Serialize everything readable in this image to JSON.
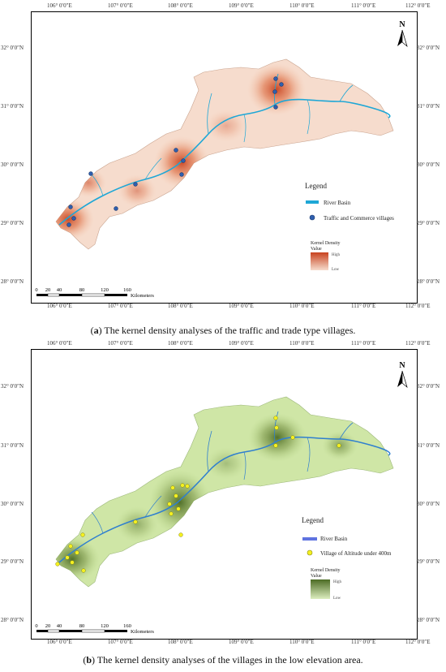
{
  "panel_a": {
    "caption_label": "a",
    "caption_text": "The kernel density analyses of the traffic and trade type villages.",
    "legend_title": "Legend",
    "legend_river": "River Basin",
    "legend_points": "Traffic and Commerce villages",
    "kd_title_1": "Kernel Density",
    "kd_title_2": "Value",
    "kd_high": "High",
    "kd_low": "Low",
    "point_color": "#2f5fae",
    "density_color": "#d8572f",
    "base_color": "#f6dccd"
  },
  "panel_b": {
    "caption_label": "b",
    "caption_text": "The kernel density analyses of the villages in the low elevation area.",
    "legend_title": "Legend",
    "legend_river": "River Basin",
    "legend_points": "Village of Altitude under 400m",
    "kd_title_1": "Kernel Density",
    "kd_title_2": "Value",
    "kd_high": "High",
    "kd_low": "Low",
    "point_color": "#f4f020",
    "density_color": "#4c6b24",
    "base_color": "#cfe6a6"
  },
  "north_label": "N",
  "scale": {
    "ticks": [
      "0",
      "20",
      "40",
      "80",
      "120",
      "160"
    ],
    "unit": "Kilometers"
  },
  "lon_labels": [
    "106° 0′0″E",
    "107° 0′0″E",
    "108° 0′0″E",
    "109° 0′0″E",
    "110° 0′0″E",
    "111° 0′0″E",
    "112° 0′0″E"
  ],
  "lat_labels": [
    "32° 0′0″N",
    "31° 0′0″N",
    "30° 0′0″N",
    "29° 0′0″N",
    "28° 0′0″N"
  ],
  "river_color": "#1ea7d6"
}
